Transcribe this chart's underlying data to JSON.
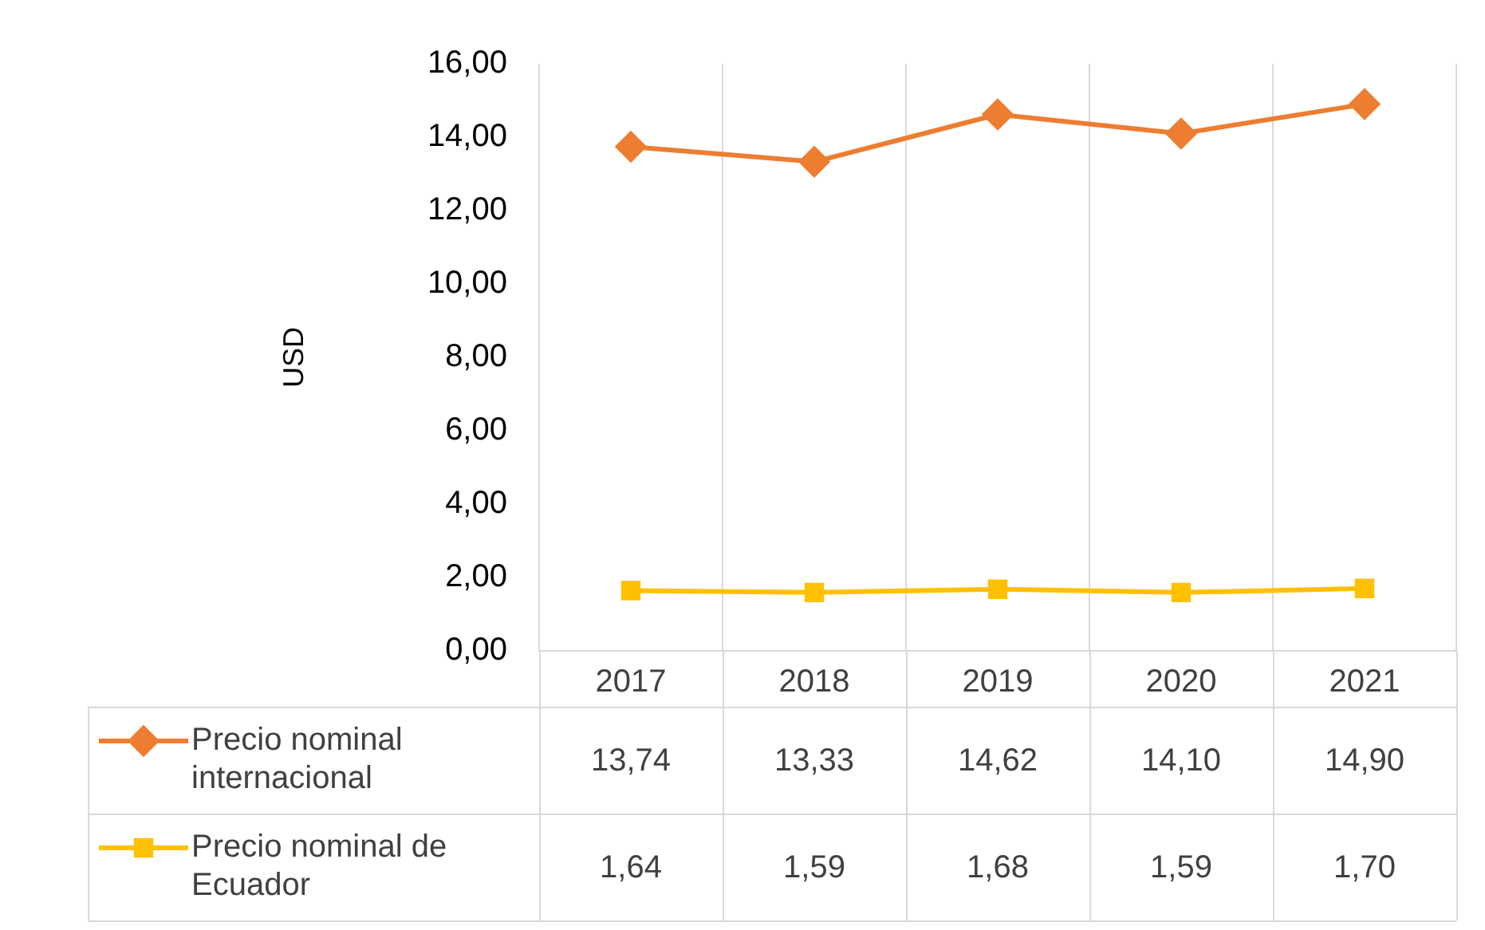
{
  "chart_data": {
    "type": "line",
    "ylabel": "USD",
    "categories": [
      "2017",
      "2018",
      "2019",
      "2020",
      "2021"
    ],
    "series": [
      {
        "name": "Precio nominal internacional",
        "color": "#ed7d31",
        "marker": "diamond",
        "values": [
          13.74,
          13.33,
          14.62,
          14.1,
          14.9
        ],
        "value_labels": [
          "13,74",
          "13,33",
          "14,62",
          "14,10",
          "14,90"
        ]
      },
      {
        "name": "Precio nominal de Ecuador",
        "color": "#ffc000",
        "marker": "square",
        "values": [
          1.64,
          1.59,
          1.68,
          1.59,
          1.7
        ],
        "value_labels": [
          "1,64",
          "1,59",
          "1,68",
          "1,59",
          "1,70"
        ]
      }
    ],
    "ylim": [
      0,
      16
    ],
    "yticks": [
      {
        "value": 0,
        "label": "0,00"
      },
      {
        "value": 2,
        "label": "2,00"
      },
      {
        "value": 4,
        "label": "4,00"
      },
      {
        "value": 6,
        "label": "6,00"
      },
      {
        "value": 8,
        "label": "8,00"
      },
      {
        "value": 10,
        "label": "10,00"
      },
      {
        "value": 12,
        "label": "12,00"
      },
      {
        "value": 14,
        "label": "14,00"
      },
      {
        "value": 16,
        "label": "16,00"
      }
    ],
    "grid": "x",
    "legend": "bottom",
    "line_style": "solid"
  }
}
